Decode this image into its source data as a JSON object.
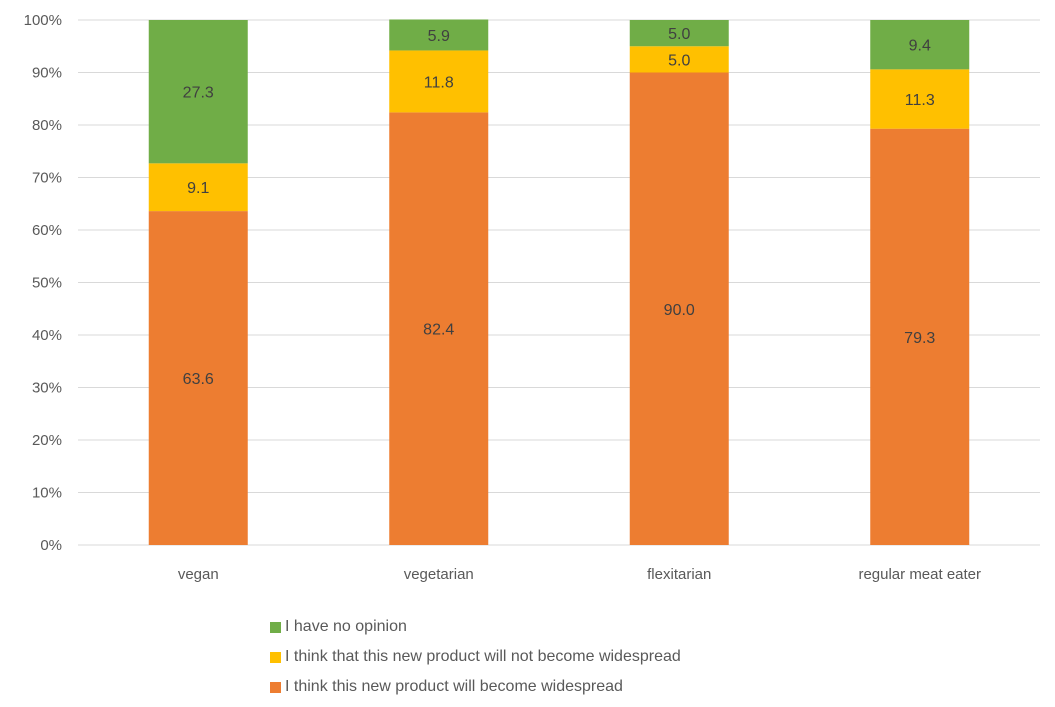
{
  "chart_data": {
    "type": "bar",
    "stacked": true,
    "percent_stacked": true,
    "categories": [
      "vegan",
      "vegetarian",
      "flexitarian",
      "regular meat eater"
    ],
    "series": [
      {
        "name": "I think this new product will become widespread",
        "color": "#ED7D31",
        "values": [
          63.6,
          82.4,
          90.0,
          79.3
        ]
      },
      {
        "name": "I think that this new product will not become widespread",
        "color": "#FFC000",
        "values": [
          9.1,
          11.8,
          5.0,
          11.3
        ]
      },
      {
        "name": "I have no opinion",
        "color": "#70AD47",
        "values": [
          27.3,
          5.9,
          5.0,
          9.4
        ]
      }
    ],
    "y_ticks": [
      "0%",
      "10%",
      "20%",
      "30%",
      "40%",
      "50%",
      "60%",
      "70%",
      "80%",
      "90%",
      "100%"
    ],
    "ylim": [
      0,
      100
    ],
    "grid": true,
    "legend_position": "bottom",
    "legend_order": [
      "I have no opinion",
      "I think that this new product will not become widespread",
      "I think this new product will become widespread"
    ]
  }
}
